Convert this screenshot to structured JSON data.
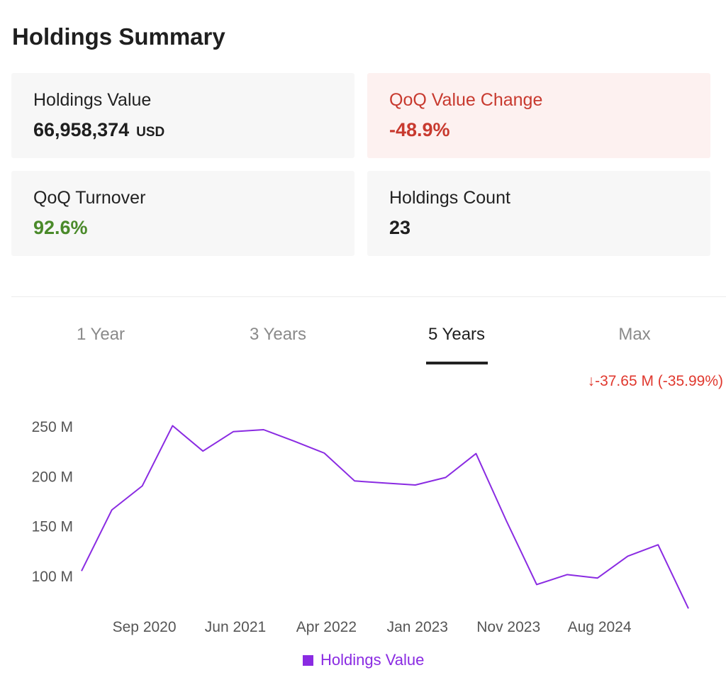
{
  "page": {
    "title": "Holdings Summary"
  },
  "cards": {
    "holdings_value": {
      "label": "Holdings Value",
      "value": "66,958,374",
      "unit": "USD"
    },
    "qoq_change": {
      "label": "QoQ Value Change",
      "value": "-48.9%"
    },
    "qoq_turnover": {
      "label": "QoQ Turnover",
      "value": "92.6%"
    },
    "holdings_count": {
      "label": "Holdings Count",
      "value": "23"
    }
  },
  "tabs": [
    {
      "label": "1 Year",
      "active": false
    },
    {
      "label": "3 Years",
      "active": false
    },
    {
      "label": "5 Years",
      "active": true
    },
    {
      "label": "Max",
      "active": false
    }
  ],
  "change_summary": "↓-37.65 M (-35.99%)",
  "colors": {
    "series": "#8a2be2",
    "negative": "#c83a2f",
    "positive": "#4a8a2a",
    "change": "#e0382e"
  },
  "chart_data": {
    "type": "line",
    "title": "",
    "xlabel": "",
    "ylabel": "",
    "x_tick_labels": [
      "Sep 2020",
      "Jun 2021",
      "Apr 2022",
      "Jan 2023",
      "Nov 2023",
      "Aug 2024"
    ],
    "x_tick_indices": [
      2,
      5,
      8,
      11,
      14,
      17
    ],
    "y_ticks": [
      100,
      150,
      200,
      250
    ],
    "y_tick_labels": [
      "100 M",
      "150 M",
      "200 M",
      "250 M"
    ],
    "ylim": [
      60,
      265
    ],
    "grid": false,
    "series": [
      {
        "name": "Holdings Value",
        "unit": "M USD",
        "values": [
          104.6,
          166.0,
          190.0,
          250.5,
          225.0,
          244.5,
          246.5,
          235.0,
          223.0,
          195.0,
          193.0,
          191.0,
          198.5,
          222.5,
          155.0,
          91.0,
          101.0,
          97.5,
          119.5,
          131.0,
          67.0
        ]
      }
    ],
    "legend": {
      "position": "bottom-center"
    }
  }
}
